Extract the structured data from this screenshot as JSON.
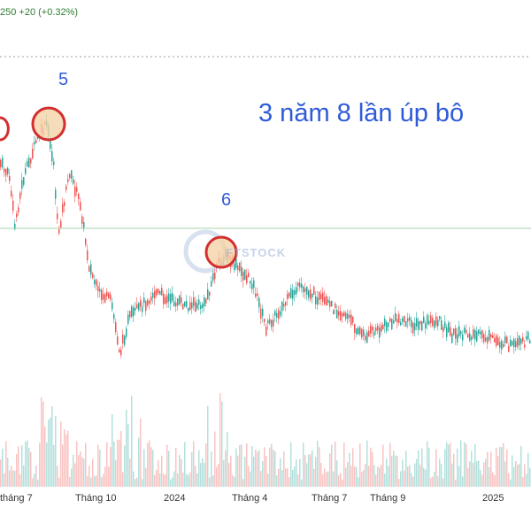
{
  "header": {
    "quote_text": "250  +20 (+0.32%)"
  },
  "annotation": {
    "headline": "3 năm 8 lần úp bô"
  },
  "watermark": {
    "text": "FTSTOCK"
  },
  "colors": {
    "up": "#26a69a",
    "down": "#ef5350",
    "annotation": "#2f5bd8",
    "marker_ring": "#d32f2f",
    "marker_fill": "#f5d3a8",
    "quote": "#2e7d32"
  },
  "chart_data": {
    "type": "candlestick",
    "title": "",
    "xlabel": "",
    "ylabel": "",
    "x_ticks": [
      "tháng 7",
      "Tháng 10",
      "2024",
      "Tháng 4",
      "Tháng 7",
      "Tháng 9",
      "2025"
    ],
    "wave_labels": [
      {
        "label": "5",
        "marked": true
      },
      {
        "label": "6",
        "marked": true
      }
    ],
    "grid": false
  }
}
